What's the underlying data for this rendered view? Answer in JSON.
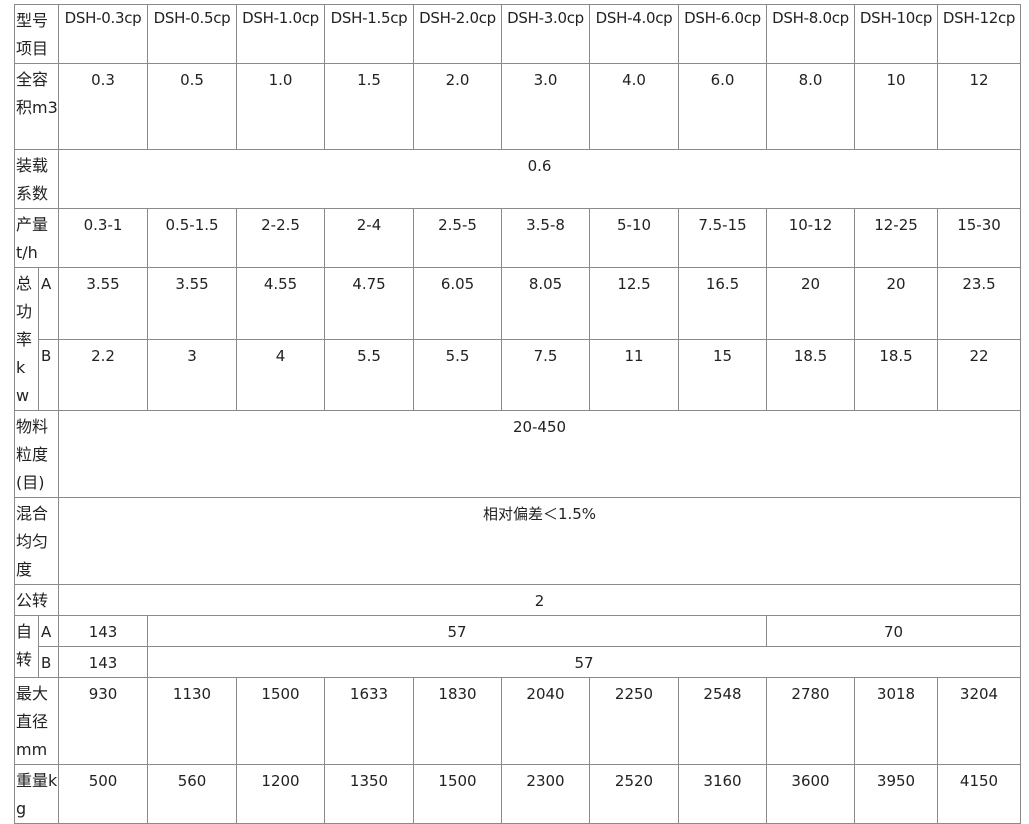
{
  "table": {
    "header": {
      "label": "型号项目",
      "models": [
        "DSH-0.3cp",
        "DSH-0.5cp",
        "DSH-1.0cp",
        "DSH-1.5cp",
        "DSH-2.0cp",
        "DSH-3.0cp",
        "DSH-4.0cp",
        "DSH-6.0cp",
        "DSH-8.0cp",
        "DSH-10cp",
        "DSH-12cp"
      ]
    },
    "rows": [
      {
        "label": "全容积m3",
        "values": [
          "0.3",
          "0.5",
          "1.0",
          "1.5",
          "2.0",
          "3.0",
          "4.0",
          "6.0",
          "8.0",
          "10",
          "12"
        ]
      },
      {
        "label": "装载系数",
        "values": [
          "0.6"
        ]
      },
      {
        "label": "产量t/h",
        "values": [
          "0.3-1",
          "0.5-1.5",
          "2-2.5",
          "2-4",
          "2.5-5",
          "3.5-8",
          "5-10",
          "7.5-15",
          "10-12",
          "12-25",
          "15-30"
        ]
      },
      {
        "label": "总功率kw",
        "subrows": [
          {
            "label": "A",
            "values": [
              "3.55",
              "3.55",
              "4.55",
              "4.75",
              "6.05",
              "8.05",
              "12.5",
              "16.5",
              "20",
              "20",
              "23.5"
            ]
          },
          {
            "label": "B",
            "values": [
              "2.2",
              "3",
              "4",
              "5.5",
              "5.5",
              "7.5",
              "11",
              "15",
              "18.5",
              "18.5",
              "22"
            ]
          }
        ]
      },
      {
        "label": "物料粒度(目)",
        "values": [
          "20-450"
        ]
      },
      {
        "label": "混合均匀度",
        "values": [
          "相对偏差＜1.5%"
        ]
      },
      {
        "label": "公转",
        "values": [
          "2"
        ]
      },
      {
        "label": "自转",
        "subrows": [
          {
            "label": "A",
            "values": [
              "143",
              "57",
              "70"
            ]
          },
          {
            "label": "B",
            "values": [
              "143",
              "57"
            ]
          }
        ]
      },
      {
        "label": "最大直径mm",
        "values": [
          "930",
          "1130",
          "1500",
          "1633",
          "1830",
          "2040",
          "2250",
          "2548",
          "2780",
          "3018",
          "3204"
        ]
      },
      {
        "label": "重量kg",
        "values": [
          "500",
          "560",
          "1200",
          "1350",
          "1500",
          "2300",
          "2520",
          "3160",
          "3600",
          "3950",
          "4150"
        ]
      }
    ]
  }
}
